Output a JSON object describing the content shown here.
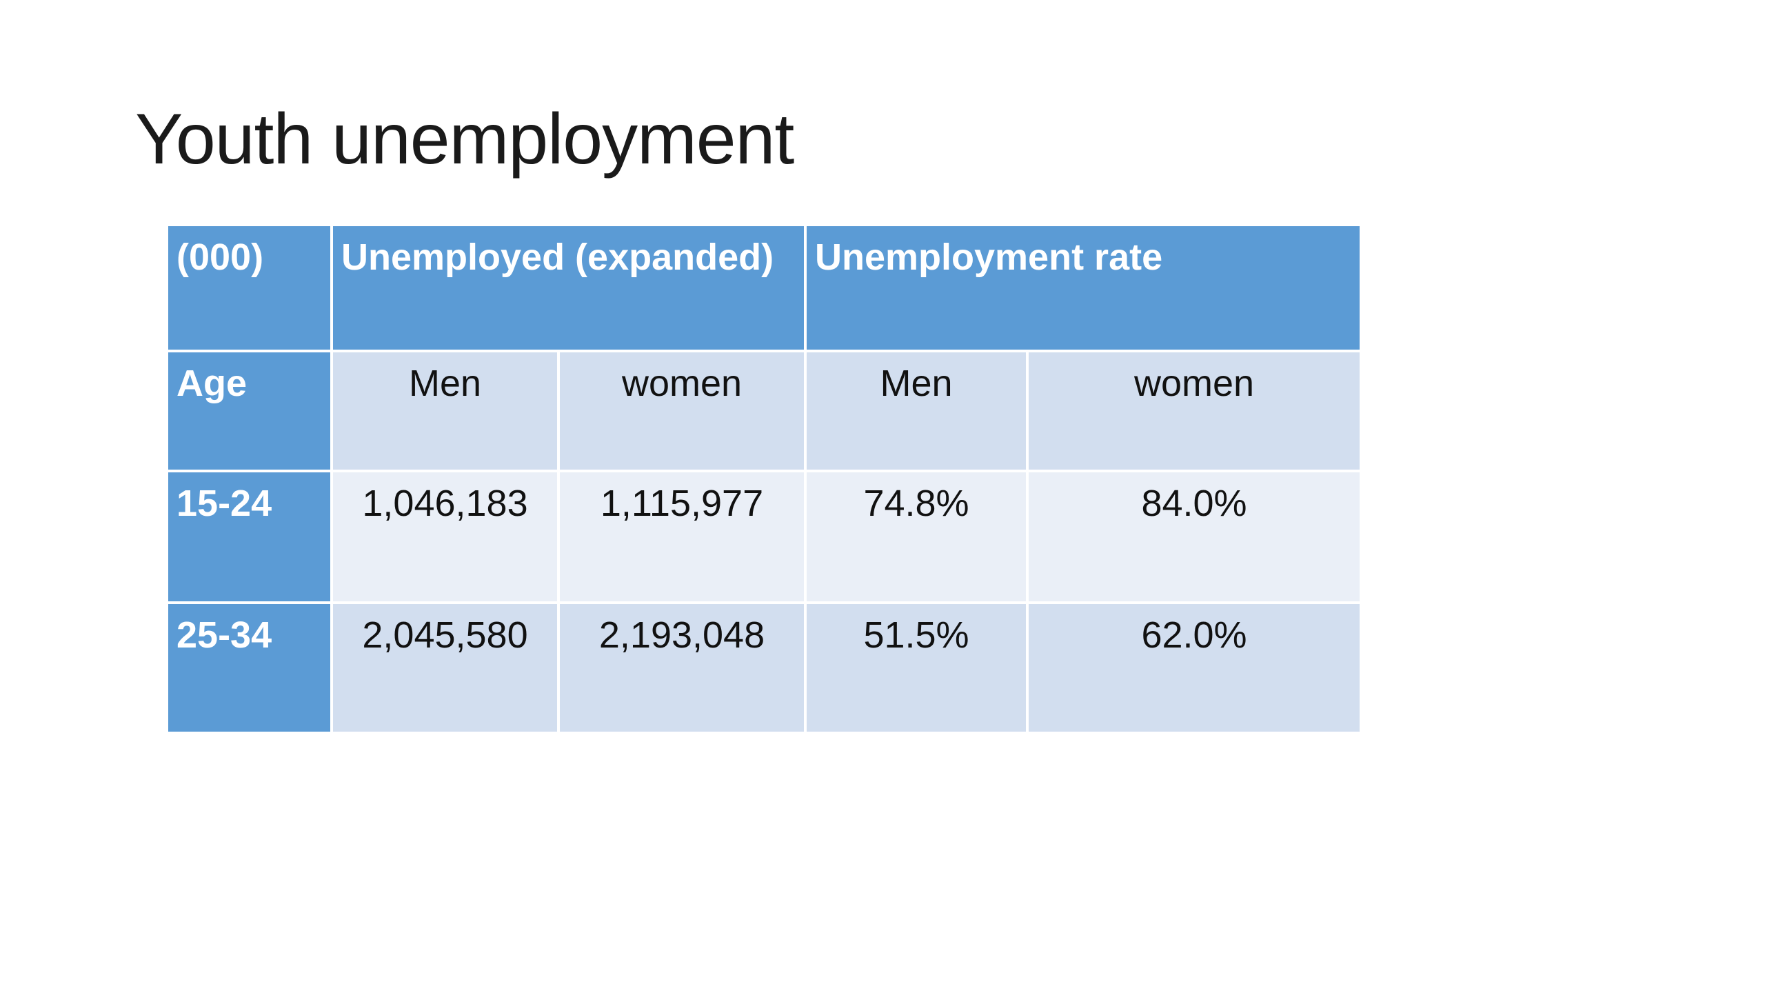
{
  "title": "Youth unemployment",
  "table": {
    "header": [
      "(000)",
      "Unemployed (expanded)",
      "Unemployment rate"
    ],
    "rows": [
      [
        "Age",
        "Men",
        "women",
        "Men",
        "women"
      ],
      [
        "15-24",
        "1,046,183",
        "1,115,977",
        "74.8%",
        "84.0%"
      ],
      [
        "25-34",
        "2,045,580",
        "2,193,048",
        "51.5%",
        "62.0%"
      ]
    ]
  }
}
